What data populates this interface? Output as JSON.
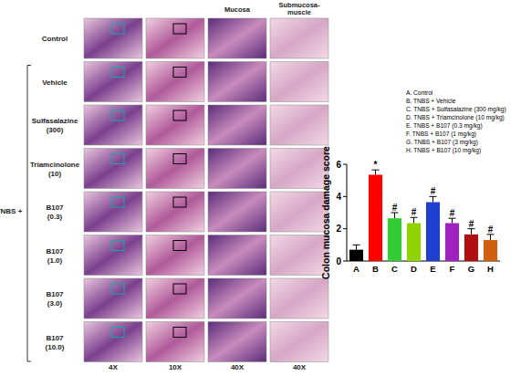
{
  "chart_data": {
    "type": "bar",
    "ylabel": "Colon mucosa damage score",
    "categories": [
      "A",
      "B",
      "C",
      "D",
      "E",
      "F",
      "G",
      "H"
    ],
    "values": [
      0.7,
      5.35,
      2.65,
      2.35,
      3.65,
      2.35,
      1.65,
      1.3
    ],
    "errors": [
      0.3,
      0.3,
      0.35,
      0.35,
      0.35,
      0.3,
      0.35,
      0.35
    ],
    "colors": [
      "#000000",
      "#ff0000",
      "#33cc33",
      "#8fd400",
      "#1f3fd0",
      "#a020c0",
      "#b01010",
      "#d06010"
    ],
    "annotations": [
      null,
      "*",
      "#",
      "#",
      "#",
      "#",
      "#",
      "#"
    ],
    "legend_labels": [
      "A.  Control",
      "B.  TNBS + Vehicle",
      "C.  TNBS + Sulfasalazine (300 mg/kg)",
      "D.  TNBS + Triamcinolone (10 mg/kg)",
      "E.  TNBS + B107 (0.3 mg/kg)",
      "F.  TNBS + B107 (1 mg/kg)",
      "G.  TNBS + B107 (3 mg/kg)",
      "H.  TNBS + B107 (10 mg/kg)"
    ],
    "ylim": [
      0,
      6
    ],
    "yticks": [
      0,
      2,
      4,
      6
    ]
  },
  "image_panel": {
    "group_label": "TNBS +",
    "row_labels": [
      [
        "Control"
      ],
      [
        "Vehicle"
      ],
      [
        "Sulfasalazine",
        "(300)"
      ],
      [
        "Triamcinolone",
        "(10)"
      ],
      [
        "B107",
        "(0.3)"
      ],
      [
        "B107",
        "(1.0)"
      ],
      [
        "B107",
        "(3.0)"
      ],
      [
        "B107",
        "(10.0)"
      ]
    ],
    "column_headers": [
      null,
      null,
      "Mucosa",
      "Submucosa-",
      "muscle"
    ],
    "magnifications": [
      "4X",
      "10X",
      "40X",
      "40X"
    ]
  }
}
